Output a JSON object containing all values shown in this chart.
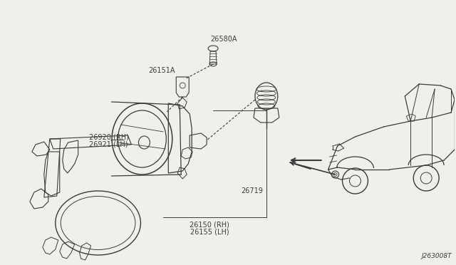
{
  "bg_color": "#f0f0eb",
  "diagram_id": "J263008T",
  "line_color": "#3a3a3a",
  "text_color": "#3a3a3a",
  "font_size": 7.0,
  "labels": {
    "26920_rh": "26920 (RH)",
    "26921_lh": "26921 (LH)",
    "26151a": "26151A",
    "26580a": "26580A",
    "26719": "26719",
    "26150_rh": "26150 (RH)",
    "26155_lh": "26155 (LH)"
  },
  "bracket_color": "#3a3a3a",
  "lamp_color": "#3a3a3a"
}
